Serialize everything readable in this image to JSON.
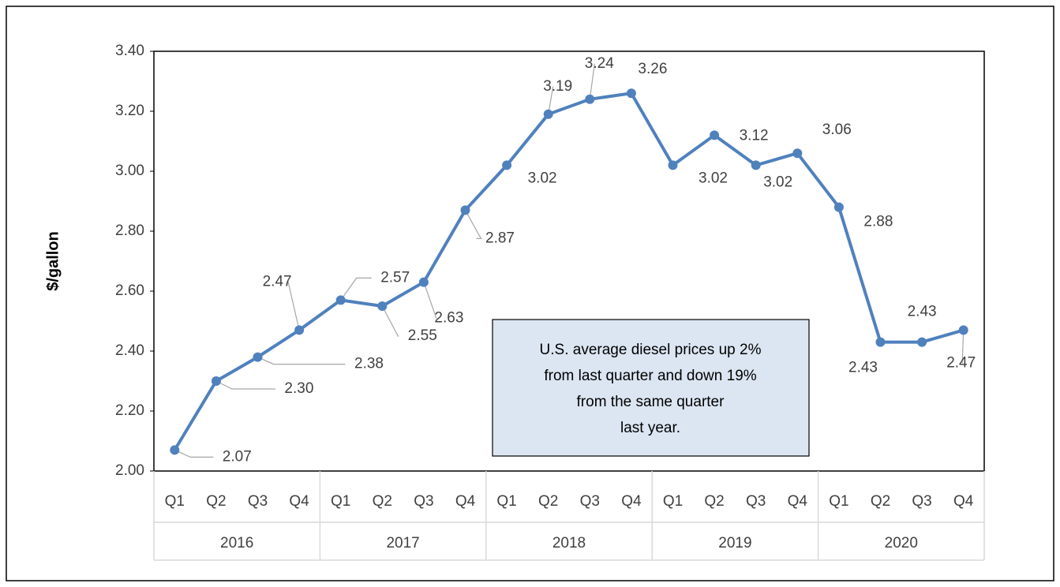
{
  "chart_data": {
    "type": "line",
    "y_label": "$/gallon",
    "categories": [
      "Q1",
      "Q2",
      "Q3",
      "Q4",
      "Q1",
      "Q2",
      "Q3",
      "Q4",
      "Q1",
      "Q2",
      "Q3",
      "Q4",
      "Q1",
      "Q2",
      "Q3",
      "Q4",
      "Q1",
      "Q2",
      "Q3",
      "Q4"
    ],
    "category_groups": [
      "2016",
      "2017",
      "2018",
      "2019",
      "2020"
    ],
    "values": [
      2.07,
      2.3,
      2.38,
      2.47,
      2.57,
      2.55,
      2.63,
      2.87,
      3.02,
      3.19,
      3.24,
      3.26,
      3.02,
      3.12,
      3.02,
      3.06,
      2.88,
      2.43,
      2.43,
      2.47
    ],
    "value_labels": [
      "2.07",
      "2.30",
      "2.38",
      "2.47",
      "2.57",
      "2.55",
      "2.63",
      "2.87",
      "3.02",
      "3.19",
      "3.24",
      "3.26",
      "3.02",
      "3.12",
      "3.02",
      "3.06",
      "2.88",
      "2.43",
      "2.43",
      "2.47"
    ],
    "color": "#4f81bd",
    "ylim": [
      2,
      3.4
    ],
    "yticks": [
      {
        "value": 2,
        "label": "2.00"
      },
      {
        "value": 2.2,
        "label": "2.20"
      },
      {
        "value": 2.4,
        "label": "2.40"
      },
      {
        "value": 2.6,
        "label": "2.60"
      },
      {
        "value": 2.8,
        "label": "2.80"
      },
      {
        "value": 3,
        "label": "3.00"
      },
      {
        "value": 3.2,
        "label": "3.20"
      },
      {
        "value": 3.4,
        "label": "3.40"
      }
    ],
    "annotation": [
      "U.S. average diesel prices up  2%",
      "from last quarter and down 19%",
      "from the same quarter",
      "last year."
    ]
  }
}
